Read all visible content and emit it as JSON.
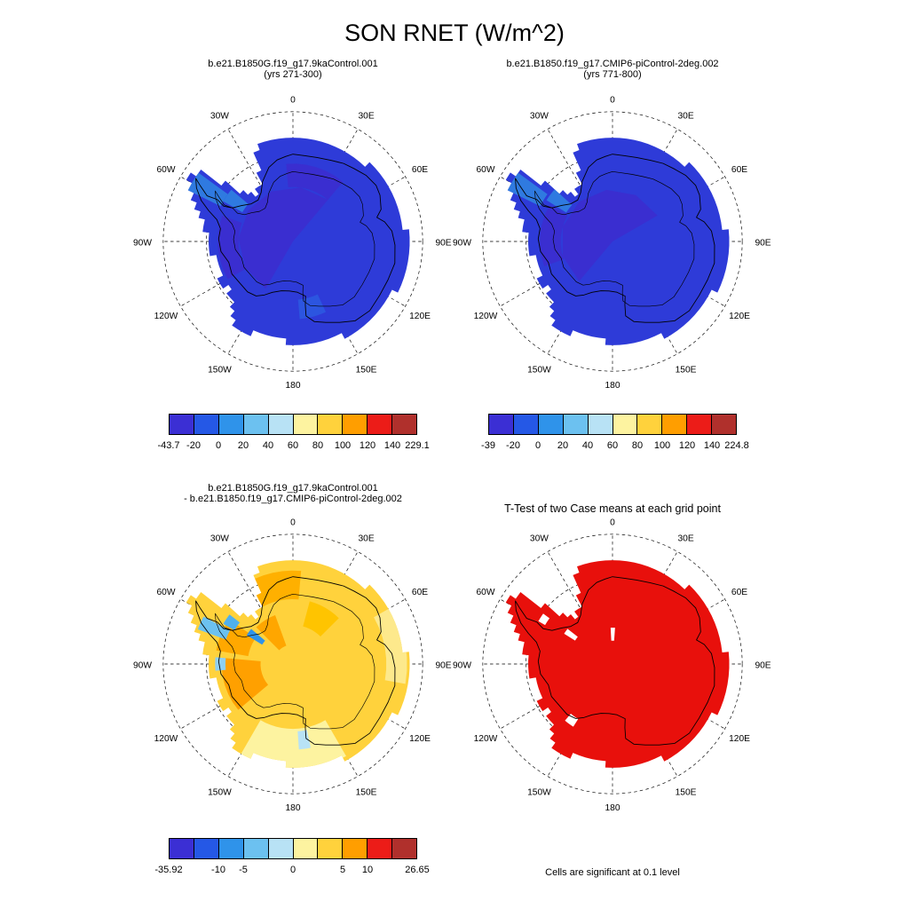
{
  "page_title": "SON RNET (W/m^2)",
  "chart_data": [
    {
      "type": "map",
      "panel": "top-left",
      "projection": "south-polar-stereographic",
      "variable": "RNET",
      "season": "SON",
      "units": "W/m^2",
      "title": "b.e21.B1850G.f19_g17.9kaControl.001",
      "subtitle": "(yrs 271-300)",
      "base_fill": "#2e3bd8",
      "inner_contour": true,
      "patches": [
        {
          "l0": -150,
          "l1": 40,
          "r0": 0,
          "r1": 0.42,
          "c": "#3a2ed0"
        },
        {
          "l0": -120,
          "l1": -70,
          "r0": 0.42,
          "r1": 0.58,
          "c": "#3a2ed0"
        },
        {
          "l0": -5,
          "l1": 40,
          "r0": 0.42,
          "r1": 0.6,
          "c": "#3a2ed0"
        },
        {
          "l0": -64,
          "l1": -54,
          "r0": 0.62,
          "r1": 0.9,
          "c": "#2f7ae0"
        },
        {
          "l0": -60,
          "l1": -50,
          "r0": 0.45,
          "r1": 0.62,
          "c": "#2f7ae0"
        },
        {
          "l0": 155,
          "l1": 175,
          "r0": 0.45,
          "r1": 0.6,
          "c": "#2c55e0"
        }
      ],
      "colorbar": {
        "min": -43.7,
        "max": 229.1,
        "colors": [
          "#3b2fd4",
          "#2558e6",
          "#2f93ea",
          "#6cc1f0",
          "#b8e2f5",
          "#fdf3a0",
          "#ffd23c",
          "#ff9e00",
          "#ec1c18",
          "#b0302c"
        ],
        "tick_labels": [
          "-43.7",
          "-20",
          "0",
          "20",
          "40",
          "60",
          "80",
          "100",
          "120",
          "140",
          "229.1"
        ],
        "tick_positions": [
          0,
          0.1,
          0.2,
          0.3,
          0.4,
          0.5,
          0.6,
          0.7,
          0.8,
          0.9,
          1
        ]
      }
    },
    {
      "type": "map",
      "panel": "top-right",
      "projection": "south-polar-stereographic",
      "variable": "RNET",
      "season": "SON",
      "units": "W/m^2",
      "title": "b.e21.B1850.f19_g17.CMIP6-piControl-2deg.002",
      "subtitle": "(yrs 771-800)",
      "base_fill": "#2e3bd8",
      "inner_contour": true,
      "patches": [
        {
          "l0": -140,
          "l1": 60,
          "r0": 0,
          "r1": 0.4,
          "c": "#3a2ed0"
        },
        {
          "l0": -110,
          "l1": -60,
          "r0": 0.4,
          "r1": 0.56,
          "c": "#3a2ed0"
        },
        {
          "l0": -64,
          "l1": -54,
          "r0": 0.62,
          "r1": 0.9,
          "c": "#2f7ae0"
        },
        {
          "l0": -58,
          "l1": -48,
          "r0": 0.42,
          "r1": 0.6,
          "c": "#2f7ae0"
        }
      ],
      "colorbar": {
        "min": -39,
        "max": 224.8,
        "colors": [
          "#3b2fd4",
          "#2558e6",
          "#2f93ea",
          "#6cc1f0",
          "#b8e2f5",
          "#fdf3a0",
          "#ffd23c",
          "#ff9e00",
          "#ec1c18",
          "#b0302c"
        ],
        "tick_labels": [
          "-39",
          "-20",
          "0",
          "20",
          "40",
          "60",
          "80",
          "100",
          "120",
          "140",
          "224.8"
        ],
        "tick_positions": [
          0,
          0.1,
          0.2,
          0.3,
          0.4,
          0.5,
          0.6,
          0.7,
          0.8,
          0.9,
          1
        ]
      }
    },
    {
      "type": "map",
      "panel": "bottom-left",
      "projection": "south-polar-stereographic",
      "variable": "RNET difference",
      "season": "SON",
      "units": "W/m^2",
      "title": "b.e21.B1850G.f19_g17.9kaControl.001",
      "subtitle": "- b.e21.B1850.f19_g17.CMIP6-piControl-2deg.002",
      "base_fill": "#ffd23c",
      "inner_contour": true,
      "patches": [
        {
          "l0": 150,
          "l1": 180,
          "r0": 0.5,
          "r1": 0.82,
          "c": "#fdf3a0"
        },
        {
          "l0": -180,
          "l1": -150,
          "r0": 0.5,
          "r1": 0.8,
          "c": "#fdf3a0"
        },
        {
          "l0": 60,
          "l1": 100,
          "r0": 0.72,
          "r1": 0.88,
          "c": "#fde98c"
        },
        {
          "l0": -130,
          "l1": -85,
          "r0": 0.25,
          "r1": 0.55,
          "c": "#ffa000"
        },
        {
          "l0": -80,
          "l1": -55,
          "r0": 0.35,
          "r1": 0.6,
          "c": "#ffa800"
        },
        {
          "l0": -30,
          "l1": 5,
          "r0": 0.5,
          "r1": 0.72,
          "c": "#ffb000"
        },
        {
          "l0": -45,
          "l1": -20,
          "r0": 0.15,
          "r1": 0.4,
          "c": "#ffa600"
        },
        {
          "l0": 15,
          "l1": 45,
          "r0": 0.3,
          "r1": 0.5,
          "c": "#ffc400"
        },
        {
          "l0": -70,
          "l1": -62,
          "r0": 0.55,
          "r1": 0.78,
          "c": "#6cc1f0"
        },
        {
          "l0": -58,
          "l1": -50,
          "r0": 0.28,
          "r1": 0.42,
          "c": "#2f93ea"
        },
        {
          "l0": -95,
          "l1": -85,
          "r0": 0.52,
          "r1": 0.6,
          "c": "#8fd0f2"
        },
        {
          "l0": -60,
          "l1": -52,
          "r0": 0.52,
          "r1": 0.62,
          "c": "#4fb0ee"
        },
        {
          "l0": 168,
          "l1": 176,
          "r0": 0.52,
          "r1": 0.66,
          "c": "#b8e2f5"
        }
      ],
      "colorbar": {
        "min": -35.92,
        "max": 26.65,
        "colors": [
          "#3b2fd4",
          "#2558e6",
          "#2f93ea",
          "#6cc1f0",
          "#b8e2f5",
          "#fdf3a0",
          "#ffd23c",
          "#ff9e00",
          "#ec1c18",
          "#b0302c"
        ],
        "tick_labels": [
          "-35.92",
          "-10",
          "-5",
          "0",
          "5",
          "10",
          "26.65"
        ],
        "tick_positions": [
          0,
          0.2,
          0.3,
          0.5,
          0.7,
          0.8,
          1
        ]
      }
    },
    {
      "type": "map",
      "panel": "bottom-right",
      "projection": "south-polar-stereographic",
      "title": "T-Test of two Case means at each grid point",
      "caption": "Cells are significant at 0.1 level",
      "base_fill": "#e8100c",
      "inner_contour": false,
      "patches": [
        {
          "l0": -58,
          "l1": -52,
          "r0": 0.34,
          "r1": 0.44,
          "c": "#ffffff"
        },
        {
          "l0": -3,
          "l1": 4,
          "r0": 0.18,
          "r1": 0.28,
          "c": "#ffffff"
        },
        {
          "l0": -148,
          "l1": -140,
          "r0": 0.5,
          "r1": 0.57,
          "c": "#ffffff"
        },
        {
          "l0": -60,
          "l1": -54,
          "r0": 0.6,
          "r1": 0.66,
          "c": "#ffffff"
        }
      ]
    }
  ],
  "map_geometry": {
    "lat_circles": [
      0.333,
      0.667,
      1.0
    ],
    "meridian_step_deg": 30,
    "grid_labels": [
      {
        "lon": 0,
        "text": "0"
      },
      {
        "lon": 30,
        "text": "30E"
      },
      {
        "lon": 60,
        "text": "60E"
      },
      {
        "lon": 90,
        "text": "90E"
      },
      {
        "lon": 120,
        "text": "120E"
      },
      {
        "lon": 150,
        "text": "150E"
      },
      {
        "lon": 180,
        "text": "180"
      },
      {
        "lon": -150,
        "text": "150W"
      },
      {
        "lon": -120,
        "text": "120W"
      },
      {
        "lon": -90,
        "text": "90W"
      },
      {
        "lon": -60,
        "text": "60W"
      },
      {
        "lon": -30,
        "text": "30W"
      }
    ],
    "coast": [
      [
        -57,
        0.893
      ],
      [
        -59,
        0.833
      ],
      [
        -62,
        0.75
      ],
      [
        -61,
        0.667
      ],
      [
        -63,
        0.6
      ],
      [
        -61,
        0.533
      ],
      [
        -55,
        0.483
      ],
      [
        -48,
        0.433
      ],
      [
        -40,
        0.417
      ],
      [
        -33,
        0.45
      ],
      [
        -27,
        0.517
      ],
      [
        -18,
        0.6
      ],
      [
        -11,
        0.64
      ],
      [
        -5,
        0.657
      ],
      [
        0,
        0.673
      ],
      [
        8,
        0.667
      ],
      [
        16,
        0.673
      ],
      [
        25,
        0.69
      ],
      [
        33,
        0.717
      ],
      [
        40,
        0.733
      ],
      [
        48,
        0.76
      ],
      [
        56,
        0.773
      ],
      [
        62,
        0.76
      ],
      [
        70,
        0.723
      ],
      [
        74,
        0.673
      ],
      [
        78,
        0.723
      ],
      [
        84,
        0.767
      ],
      [
        92,
        0.787
      ],
      [
        102,
        0.803
      ],
      [
        112,
        0.79
      ],
      [
        122,
        0.787
      ],
      [
        132,
        0.797
      ],
      [
        142,
        0.777
      ],
      [
        150,
        0.72
      ],
      [
        158,
        0.673
      ],
      [
        165,
        0.64
      ],
      [
        170,
        0.583
      ],
      [
        169,
        0.5
      ],
      [
        167,
        0.433
      ],
      [
        175,
        0.393
      ],
      [
        184,
        0.383
      ],
      [
        193,
        0.39
      ],
      [
        202,
        0.423
      ],
      [
        208,
        0.467
      ],
      [
        214,
        0.507
      ],
      [
        222,
        0.523
      ],
      [
        232,
        0.52
      ],
      [
        242,
        0.533
      ],
      [
        252,
        0.52
      ],
      [
        262,
        0.56
      ],
      [
        272,
        0.573
      ],
      [
        280,
        0.567
      ],
      [
        286,
        0.61
      ],
      [
        290,
        0.69
      ],
      [
        294,
        0.773
      ],
      [
        299,
        0.85
      ]
    ],
    "fill_profile": [
      [
        -180,
        0.78
      ],
      [
        -165,
        0.74
      ],
      [
        -150,
        0.8
      ],
      [
        -140,
        0.7
      ],
      [
        -130,
        0.62
      ],
      [
        -120,
        0.63
      ],
      [
        -110,
        0.6
      ],
      [
        -100,
        0.64
      ],
      [
        -90,
        0.66
      ],
      [
        -80,
        0.7
      ],
      [
        -72,
        0.82
      ],
      [
        -66,
        0.9
      ],
      [
        -60,
        0.95
      ],
      [
        -55,
        0.88
      ],
      [
        -52,
        0.72
      ],
      [
        -50,
        0.6
      ],
      [
        -45,
        0.48
      ],
      [
        -40,
        0.46
      ],
      [
        -33,
        0.5
      ],
      [
        -28,
        0.62
      ],
      [
        -22,
        0.78
      ],
      [
        -15,
        0.82
      ],
      [
        -8,
        0.8
      ],
      [
        0,
        0.78
      ],
      [
        10,
        0.8
      ],
      [
        20,
        0.78
      ],
      [
        30,
        0.8
      ],
      [
        40,
        0.82
      ],
      [
        50,
        0.84
      ],
      [
        60,
        0.85
      ],
      [
        70,
        0.83
      ],
      [
        80,
        0.85
      ],
      [
        90,
        0.92
      ],
      [
        100,
        0.9
      ],
      [
        110,
        0.88
      ],
      [
        120,
        0.87
      ],
      [
        130,
        0.85
      ],
      [
        140,
        0.86
      ],
      [
        150,
        0.83
      ],
      [
        160,
        0.8
      ],
      [
        170,
        0.78
      ],
      [
        180,
        0.78
      ]
    ]
  }
}
